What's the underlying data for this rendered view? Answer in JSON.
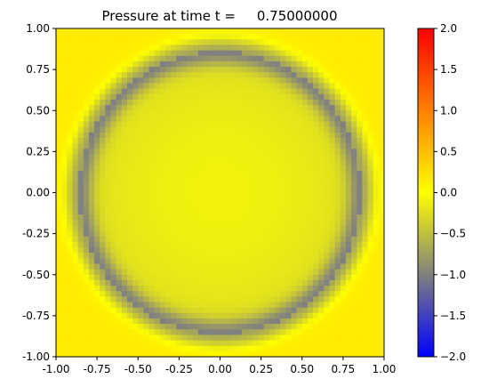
{
  "chart_data": {
    "type": "heatmap",
    "title": "Pressure at time t =     0.75000000",
    "xlabel": "",
    "ylabel": "",
    "xlim": [
      -1.0,
      1.0
    ],
    "ylim": [
      -1.0,
      1.0
    ],
    "x_ticks": [
      "-1.00",
      "-0.75",
      "-0.50",
      "-0.25",
      "0.00",
      "0.25",
      "0.50",
      "0.75",
      "1.00"
    ],
    "y_ticks": [
      "-1.00",
      "-0.75",
      "-0.50",
      "-0.25",
      "0.00",
      "0.25",
      "0.50",
      "0.75",
      "1.00"
    ],
    "grid_cells": 60,
    "field": {
      "description": "radially symmetric pressure wave",
      "ring_radius": 0.86,
      "ring_width": 0.06,
      "ring_value": -0.72,
      "center_value": -0.1,
      "inner_value": -0.28,
      "outer_value": 0.15
    },
    "colorbar": {
      "range": [
        -2.0,
        2.0
      ],
      "ticks": [
        "2.0",
        "1.5",
        "1.0",
        "0.5",
        "0.0",
        "−0.5",
        "−1.0",
        "−1.5",
        "−2.0"
      ],
      "tick_values": [
        2.0,
        1.5,
        1.0,
        0.5,
        0.0,
        -0.5,
        -1.0,
        -1.5,
        -2.0
      ],
      "colormap": [
        {
          "v": -2.0,
          "color": "#0000ff"
        },
        {
          "v": -1.0,
          "color": "#808080"
        },
        {
          "v": 0.0,
          "color": "#ffff00"
        },
        {
          "v": 1.0,
          "color": "#ff8000"
        },
        {
          "v": 2.0,
          "color": "#ff0000"
        }
      ]
    }
  }
}
